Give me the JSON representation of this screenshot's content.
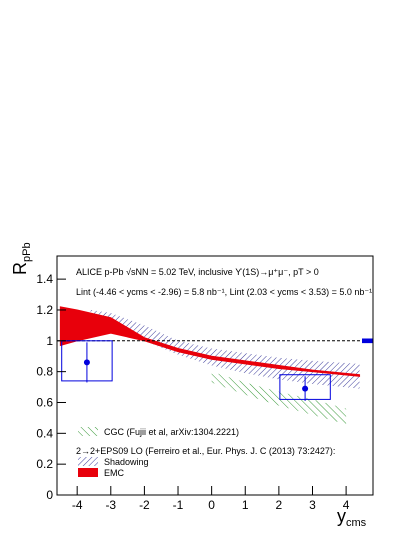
{
  "chart_data": {
    "type": "physics-plot",
    "text_lines": [
      "ALICE p-Pb √sNN = 5.02 TeV, inclusive ϒ(1S)→μ⁺μ⁻, pT > 0",
      "Lint (-4.46 < ycms < -2.96) = 5.8 nb⁻¹,  Lint (2.03 < ycms < 3.53) = 5.0 nb⁻¹"
    ],
    "y_label": {
      "main": "R",
      "sub": "pPb"
    },
    "x_label": {
      "main": "y",
      "sub": "cms"
    },
    "xlim": [
      -4.6,
      4.8
    ],
    "ylim": [
      0,
      1.55
    ],
    "xticks": [
      -4,
      -3,
      -2,
      -1,
      0,
      1,
      2,
      3,
      4
    ],
    "yticks": [
      0,
      0.2,
      0.4,
      0.6,
      0.8,
      1,
      1.2,
      1.4
    ],
    "reference_line": 1,
    "legend_header": "2→2+EPS09 LO (Ferreiro et al., Eur. Phys. J. C (2013) 73:2427):",
    "bands": [
      {
        "name": "CGC (Fujii et al, arXiv:1304.2221)",
        "color": "#3a9a3a",
        "style": "hatch",
        "x": [
          0,
          1,
          2,
          3,
          4
        ],
        "low": [
          0.73,
          0.65,
          0.58,
          0.52,
          0.46
        ],
        "high": [
          0.8,
          0.73,
          0.67,
          0.62,
          0.56
        ]
      },
      {
        "name": "Shadowing",
        "color": "#3c3c9c",
        "style": "hatch",
        "x": [
          -3.6,
          -3,
          -2,
          -1,
          0,
          1,
          2,
          3,
          4.4
        ],
        "low": [
          1.11,
          1.09,
          1.0,
          0.91,
          0.84,
          0.79,
          0.75,
          0.72,
          0.69
        ],
        "high": [
          1.2,
          1.18,
          1.1,
          1.0,
          0.95,
          0.92,
          0.89,
          0.87,
          0.85
        ]
      },
      {
        "name": "EMC",
        "color": "#e8000b",
        "style": "solid",
        "x": [
          -4.5,
          -4,
          -3,
          -2,
          -1,
          0,
          1,
          2,
          3,
          4.4
        ],
        "low": [
          0.97,
          1.0,
          1.05,
          1.0,
          0.93,
          0.88,
          0.85,
          0.82,
          0.8,
          0.77
        ],
        "high": [
          1.22,
          1.2,
          1.15,
          1.02,
          0.95,
          0.9,
          0.87,
          0.84,
          0.81,
          0.78
        ]
      }
    ],
    "points": {
      "color": "#0000dd",
      "x": [
        -3.71,
        2.78
      ],
      "values": [
        0.86,
        0.69
      ],
      "stat_err": [
        0.13,
        0.08
      ],
      "sys_x_low": [
        -4.46,
        2.03
      ],
      "sys_x_high": [
        -2.96,
        3.53
      ],
      "sys_low": [
        0.74,
        0.62
      ],
      "sys_high": [
        1.0,
        0.78
      ]
    },
    "global_uncertainty": {
      "value": 1,
      "error": 0.015
    }
  }
}
